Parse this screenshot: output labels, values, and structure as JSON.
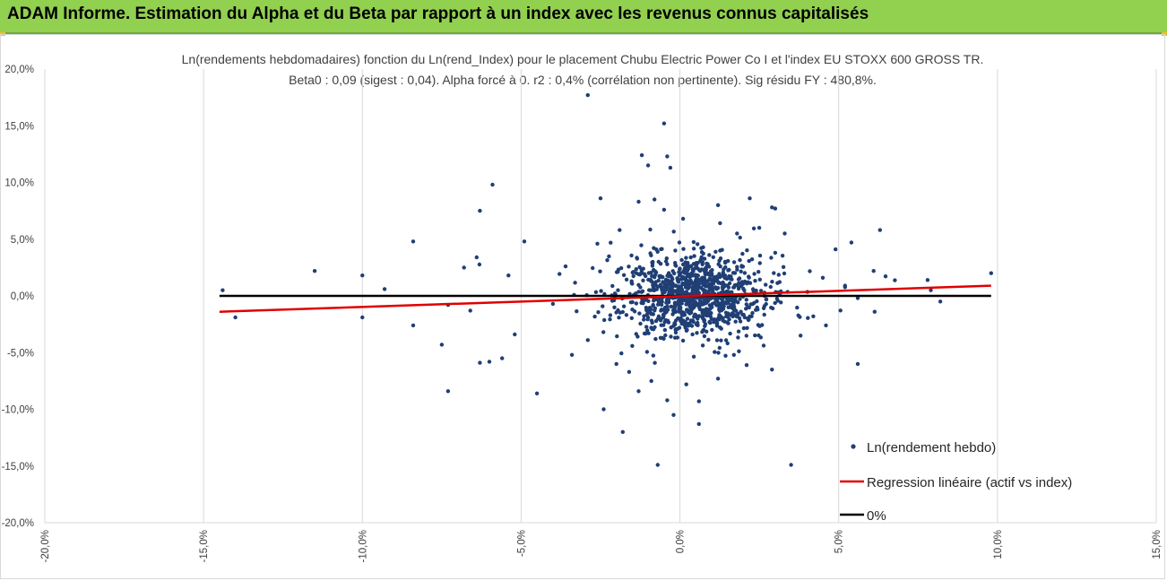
{
  "header": {
    "title": "ADAM Informe. Estimation du Alpha et du Beta par rapport à un index avec les revenus connus capitalisés"
  },
  "colors": {
    "header_bg": "#92d050",
    "points": "#1f3f75",
    "regression": "#e00000",
    "zero_line": "#000000",
    "grid": "#d9d9d9"
  },
  "chart_data": {
    "type": "scatter",
    "title_line1": "Ln(rendements hebdomadaires) fonction du Ln(rend_Index) pour le placement Chubu Electric Power Co I et l'index EU STOXX 600 GROSS TR.",
    "title_line2": "Beta0 : 0,09 (sigest : 0,04). Alpha forcé à 0. r2 : 0,4% (corrélation non pertinente). Sig résidu FY : 480,8%.",
    "xlim": [
      -20,
      15
    ],
    "ylim": [
      -20,
      20
    ],
    "x_ticks": [
      "-20,0%",
      "-15,0%",
      "-10,0%",
      "-5,0%",
      "0,0%",
      "5,0%",
      "10,0%",
      "15,0%"
    ],
    "y_ticks": [
      "20,0%",
      "15,0%",
      "10,0%",
      "5,0%",
      "0,0%",
      "-5,0%",
      "-10,0%",
      "-15,0%",
      "-20,0%"
    ],
    "grid": "vertical",
    "legend_position": "bottom-right",
    "legend": [
      "Ln(rendement hebdo)",
      "Regression linéaire (actif vs index)",
      "0%"
    ],
    "regression": {
      "x": [
        -14.5,
        9.8
      ],
      "y": [
        -1.4,
        0.9
      ]
    },
    "zero_line": {
      "x": [
        -14.5,
        9.8
      ],
      "y": [
        0,
        0
      ]
    },
    "outliers": [
      [
        -14.4,
        0.5
      ],
      [
        -14.0,
        -1.9
      ],
      [
        -11.5,
        2.2
      ],
      [
        -10.0,
        1.8
      ],
      [
        -10.0,
        -1.9
      ],
      [
        -9.3,
        0.6
      ],
      [
        -8.4,
        4.8
      ],
      [
        -8.4,
        -2.6
      ],
      [
        -7.5,
        -4.3
      ],
      [
        -7.3,
        -8.4
      ],
      [
        -7.3,
        -0.8
      ],
      [
        -6.8,
        2.5
      ],
      [
        -6.6,
        -1.3
      ],
      [
        -6.4,
        3.4
      ],
      [
        -6.3,
        7.5
      ],
      [
        -6.0,
        -5.8
      ],
      [
        -6.3,
        -5.9
      ],
      [
        -5.9,
        9.8
      ],
      [
        -5.6,
        -5.5
      ],
      [
        -4.9,
        4.8
      ],
      [
        -4.5,
        -8.6
      ],
      [
        -2.9,
        17.7
      ],
      [
        -2.5,
        8.6
      ],
      [
        -2.4,
        -10.0
      ],
      [
        -1.8,
        -12.0
      ],
      [
        -1.3,
        8.3
      ],
      [
        -1.2,
        12.4
      ],
      [
        -1.0,
        11.5
      ],
      [
        -1.3,
        -8.4
      ],
      [
        -0.8,
        8.5
      ],
      [
        -0.5,
        15.2
      ],
      [
        -0.7,
        -14.9
      ],
      [
        -0.4,
        12.3
      ],
      [
        -0.3,
        11.3
      ],
      [
        -0.4,
        -9.2
      ],
      [
        -0.2,
        -10.5
      ],
      [
        0.6,
        -11.3
      ],
      [
        0.6,
        -9.3
      ],
      [
        1.2,
        8.0
      ],
      [
        2.2,
        8.6
      ],
      [
        2.9,
        7.8
      ],
      [
        3.0,
        7.7
      ],
      [
        3.5,
        -14.9
      ],
      [
        4.9,
        4.1
      ],
      [
        5.4,
        4.7
      ],
      [
        5.6,
        -6.0
      ],
      [
        5.6,
        -0.2
      ],
      [
        6.1,
        2.2
      ],
      [
        6.3,
        5.8
      ],
      [
        7.8,
        1.4
      ],
      [
        7.9,
        0.5
      ],
      [
        8.2,
        -0.5
      ],
      [
        9.8,
        2.0
      ],
      [
        4.2,
        -1.8
      ],
      [
        4.6,
        -2.6
      ],
      [
        3.8,
        -3.5
      ],
      [
        5.2,
        0.9
      ],
      [
        4.5,
        1.6
      ],
      [
        -3.4,
        -5.2
      ],
      [
        -2.9,
        -3.9
      ],
      [
        -2.0,
        -6.0
      ],
      [
        -3.6,
        2.6
      ],
      [
        -4.0,
        -0.7
      ],
      [
        -5.2,
        -3.4
      ],
      [
        -5.4,
        1.8
      ],
      [
        2.9,
        -6.5
      ],
      [
        2.1,
        -6.1
      ],
      [
        1.7,
        -5.2
      ],
      [
        1.2,
        -7.3
      ],
      [
        -1.6,
        -6.7
      ],
      [
        0.2,
        -7.8
      ],
      [
        -0.9,
        -7.5
      ],
      [
        3.3,
        5.5
      ],
      [
        3.0,
        3.8
      ],
      [
        2.5,
        6.0
      ],
      [
        1.8,
        5.5
      ],
      [
        0.1,
        6.8
      ],
      [
        -0.5,
        7.6
      ],
      [
        -1.9,
        5.8
      ],
      [
        -2.6,
        4.6
      ]
    ],
    "n_core_points": 1060,
    "core_spread": {
      "x_sd": 1.05,
      "y_sd": 1.75
    }
  }
}
